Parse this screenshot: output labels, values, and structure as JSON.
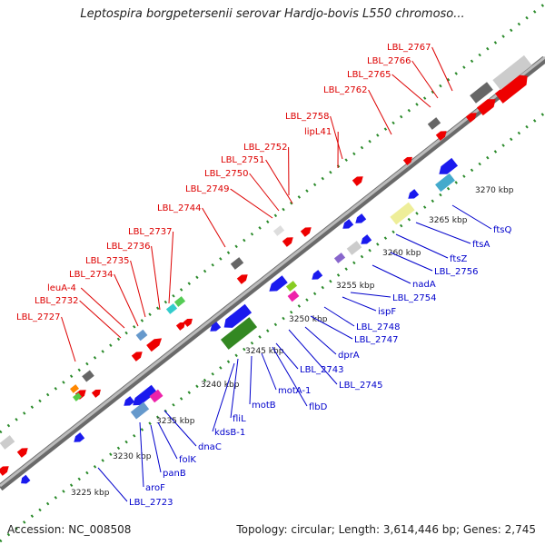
{
  "title": "Leptospira borgpetersenii serovar Hardjo-bovis L550 chromoso...",
  "footer": {
    "accession": "Accession: NC_008508",
    "topology": "Topology: circular; Length: 3,614,446 bp; Genes: 2,745"
  },
  "colors": {
    "forward_label": "#dd0000",
    "reverse_label": "#0000cc",
    "forward_gene": "#ee0000",
    "reverse_gene": "#1a1aee",
    "axis": "#888888",
    "tick_dots": "#2a8a2a"
  },
  "ruler_labels": [
    "3225 kbp",
    "3230 kbp",
    "3235 kbp",
    "3240 kbp",
    "3245 kbp",
    "3250 kbp",
    "3255 kbp",
    "3260 kbp",
    "3265 kbp",
    "3270 kbp"
  ],
  "forward_genes": [
    "LBL_2727",
    "LBL_2732",
    "leuA-4",
    "LBL_2734",
    "LBL_2735",
    "LBL_2736",
    "LBL_2737",
    "LBL_2744",
    "LBL_2749",
    "LBL_2750",
    "LBL_2751",
    "LBL_2752",
    "lipL41",
    "LBL_2758",
    "LBL_2762",
    "LBL_2765",
    "LBL_2766",
    "LBL_2767"
  ],
  "reverse_genes": [
    "LBL_2723",
    "aroF",
    "panB",
    "folK",
    "dnaC",
    "kdsB-1",
    "fliL",
    "motB",
    "motA-1",
    "flbD",
    "LBL_2743",
    "LBL_2745",
    "dprA",
    "LBL_2747",
    "LBL_2748",
    "ispF",
    "LBL_2754",
    "nadA",
    "LBL_2756",
    "ftsZ",
    "ftsA",
    "ftsQ"
  ]
}
